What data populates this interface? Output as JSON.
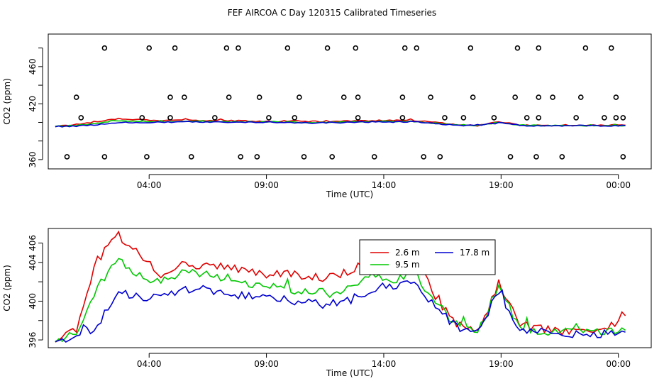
{
  "title": "FEF AIRCOA C  Day 120315  Calibrated Timeseries",
  "colors": {
    "red": "#e00000",
    "green": "#00c800",
    "blue": "#0000d0",
    "axis": "#000000"
  },
  "chart_data": [
    {
      "type": "line",
      "xlabel": "Time (UTC)",
      "ylabel": "CO2 (ppm)",
      "xlim": [
        -1.3,
        24.4
      ],
      "ylim": [
        350,
        495
      ],
      "x_ticks": [
        3,
        8,
        13,
        18,
        23
      ],
      "x_tick_labels": [
        "04:00",
        "09:00",
        "14:00",
        "19:00",
        "00:00"
      ],
      "y_ticks": [
        360,
        380,
        400,
        420,
        440,
        460,
        480
      ],
      "y_tick_labels": [
        "360",
        "",
        "",
        "420",
        "",
        "460",
        ""
      ],
      "series": [
        {
          "color": "red",
          "values": [
            396,
            397.5,
            401,
            404,
            403,
            402,
            402.5,
            402,
            402,
            401.5,
            401,
            401.5,
            401,
            401,
            401.5,
            402,
            402,
            402,
            400,
            397.5,
            396.5,
            401,
            397,
            397,
            396.5,
            396.5,
            397,
            397
          ]
        },
        {
          "color": "green",
          "values": [
            396,
            396.5,
            399,
            402,
            401,
            400.5,
            401.5,
            401,
            401,
            400.5,
            400.5,
            400.5,
            400,
            400,
            400.5,
            401,
            401,
            401,
            399,
            397.5,
            396.5,
            400,
            397,
            396.5,
            396.5,
            396.5,
            396.5,
            396.5
          ]
        },
        {
          "color": "blue",
          "values": [
            395.5,
            396,
            397.5,
            400,
            400,
            400,
            400.5,
            400.5,
            400.5,
            400,
            400,
            400,
            399.5,
            399.5,
            400,
            400.5,
            400.5,
            401,
            398.5,
            397,
            396.5,
            399.5,
            396.5,
            396.5,
            396.5,
            396.5,
            396.5,
            396.5
          ]
        }
      ],
      "series_x_start": -1,
      "series_x_step": 0.9,
      "points": [
        [
          -0.5,
          363
        ],
        [
          1.1,
          363
        ],
        [
          2.9,
          363
        ],
        [
          4.8,
          363
        ],
        [
          6.9,
          363
        ],
        [
          7.6,
          363
        ],
        [
          9.6,
          363
        ],
        [
          10.8,
          363
        ],
        [
          12.6,
          363
        ],
        [
          14.7,
          363
        ],
        [
          15.4,
          363
        ],
        [
          18.4,
          363
        ],
        [
          19.5,
          363
        ],
        [
          20.6,
          363
        ],
        [
          23.2,
          363
        ],
        [
          0.1,
          405
        ],
        [
          2.7,
          405
        ],
        [
          3.9,
          405
        ],
        [
          5.8,
          405
        ],
        [
          8.1,
          405
        ],
        [
          9.2,
          405
        ],
        [
          11.9,
          405
        ],
        [
          13.8,
          405
        ],
        [
          15.6,
          405
        ],
        [
          16.4,
          405
        ],
        [
          17.7,
          405
        ],
        [
          19.1,
          405
        ],
        [
          19.6,
          405
        ],
        [
          21.2,
          405
        ],
        [
          22.4,
          405
        ],
        [
          22.9,
          405
        ],
        [
          23.2,
          405
        ],
        [
          -0.1,
          427
        ],
        [
          3.9,
          427
        ],
        [
          4.5,
          427
        ],
        [
          6.4,
          427
        ],
        [
          7.7,
          427
        ],
        [
          9.4,
          427
        ],
        [
          11.3,
          427
        ],
        [
          11.9,
          427
        ],
        [
          13.8,
          427
        ],
        [
          15.0,
          427
        ],
        [
          16.8,
          427
        ],
        [
          18.6,
          427
        ],
        [
          19.6,
          427
        ],
        [
          20.2,
          427
        ],
        [
          21.4,
          427
        ],
        [
          22.9,
          427
        ],
        [
          1.1,
          480
        ],
        [
          3.0,
          480
        ],
        [
          4.1,
          480
        ],
        [
          6.3,
          480
        ],
        [
          6.8,
          480
        ],
        [
          8.9,
          480
        ],
        [
          10.6,
          480
        ],
        [
          11.8,
          480
        ],
        [
          13.9,
          480
        ],
        [
          14.4,
          480
        ],
        [
          16.7,
          480
        ],
        [
          18.7,
          480
        ],
        [
          19.6,
          480
        ],
        [
          21.6,
          480
        ],
        [
          22.7,
          480
        ]
      ]
    },
    {
      "type": "line",
      "xlabel": "Time (UTC)",
      "ylabel": "CO2 (ppm)",
      "xlim": [
        -1.3,
        24.4
      ],
      "ylim": [
        395.2,
        407.5
      ],
      "x_ticks": [
        3,
        8,
        13,
        18,
        23
      ],
      "x_tick_labels": [
        "04:00",
        "09:00",
        "14:00",
        "19:00",
        "00:00"
      ],
      "y_ticks": [
        396,
        398,
        400,
        402,
        404,
        406
      ],
      "y_tick_labels": [
        "396",
        "",
        "400",
        "",
        "404",
        "406"
      ],
      "legend": {
        "position": "top-center",
        "entries": [
          {
            "label": "2.6 m",
            "color": "red"
          },
          {
            "label": "17.8 m",
            "color": "blue"
          },
          {
            "label": "9.5 m",
            "color": "green"
          }
        ]
      },
      "series_x_start": -1,
      "series_x_step": 0.9,
      "series": [
        {
          "name": "2.6 m",
          "color": "red",
          "values": [
            396,
            397.2,
            404.3,
            406.8,
            404.5,
            402.8,
            403.8,
            403.5,
            403.6,
            403.2,
            402.8,
            403,
            402.4,
            402.5,
            403,
            404.5,
            404.2,
            405.5,
            400.2,
            397.8,
            396.8,
            401.8,
            397.5,
            397.2,
            396.8,
            396.8,
            397,
            398.5
          ]
        },
        {
          "name": "9.5 m",
          "color": "green",
          "values": [
            396,
            396.8,
            401.5,
            404.5,
            402.5,
            401.8,
            403.2,
            402.8,
            402.5,
            401.8,
            401.5,
            401.2,
            401,
            400.8,
            401.2,
            402.5,
            402.2,
            403,
            399.8,
            397.6,
            396.8,
            401.5,
            397.3,
            396.9,
            396.8,
            396.8,
            396.9,
            397
          ]
        },
        {
          "name": "17.8 m",
          "color": "blue",
          "values": [
            395.5,
            396.2,
            397.5,
            401.2,
            400.3,
            400.3,
            401.2,
            401.2,
            401,
            400.5,
            400.2,
            400.2,
            399.8,
            399.6,
            400.2,
            401.2,
            401.4,
            402.2,
            399.3,
            397.4,
            396.8,
            401,
            396.7,
            396.8,
            396.8,
            396.6,
            396.6,
            396.8
          ]
        }
      ]
    }
  ]
}
